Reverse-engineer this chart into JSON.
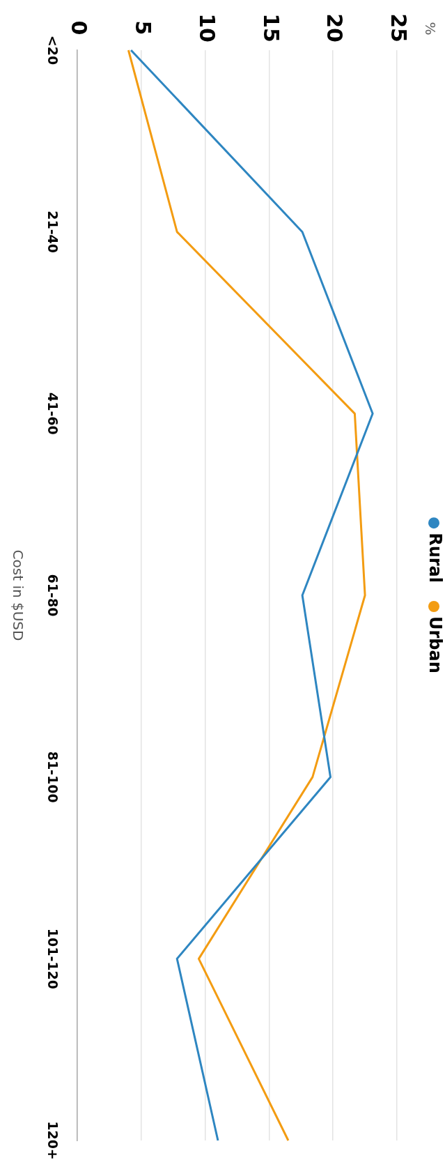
{
  "chart_data": {
    "type": "line",
    "orientation": "horizontal",
    "ylabel": "Cost in $USD",
    "annotations": [
      "%"
    ],
    "categories": [
      "<20",
      "21-40",
      "41-60",
      "61-80",
      "81-100",
      "101-120",
      "120+"
    ],
    "series": [
      {
        "name": "Rural",
        "color": "#2e86c1",
        "values": [
          4.2,
          17.6,
          23.1,
          17.6,
          19.8,
          7.8,
          11.0
        ]
      },
      {
        "name": "Urban",
        "color": "#f39c12",
        "values": [
          4.0,
          7.8,
          21.7,
          22.5,
          18.4,
          9.5,
          16.5
        ]
      }
    ],
    "xlim": [
      0,
      25
    ],
    "xticks": [
      0,
      5,
      10,
      15,
      20,
      25
    ],
    "grid": "x",
    "legend": "top",
    "marker": "none",
    "line_style": "solid"
  }
}
